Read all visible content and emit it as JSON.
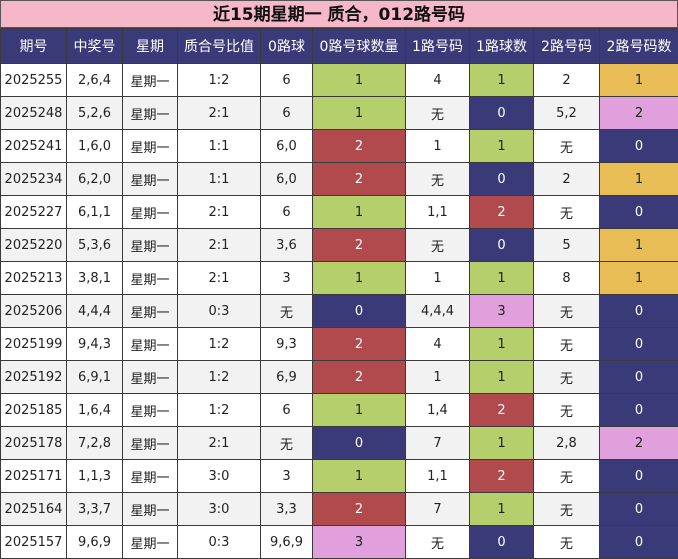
{
  "title": "近15期星期一 质合，012路号码",
  "colors": {
    "header_bg": "#3b3a78",
    "title_bg": "#f6b7c8",
    "green": "#b4cf6c",
    "red": "#b04a4d",
    "navy": "#3b3a78",
    "pink": "#dfa0dc",
    "yellow": "#e9bd56"
  },
  "headers": [
    "期号",
    "中奖号",
    "星期",
    "质合号比值",
    "0路球",
    "0路号球数量",
    "1路号码",
    "1路球数",
    "2路号码",
    "2路号码数"
  ],
  "rows": [
    {
      "period": "2025255",
      "numbers": "2,6,4",
      "weekday": "星期一",
      "ratio": "1:2",
      "road0": "6",
      "road0_count": "1",
      "road1": "4",
      "road1_count": "1",
      "road2": "2",
      "road2_count": "1"
    },
    {
      "period": "2025248",
      "numbers": "5,2,6",
      "weekday": "星期一",
      "ratio": "2:1",
      "road0": "6",
      "road0_count": "1",
      "road1": "无",
      "road1_count": "0",
      "road2": "5,2",
      "road2_count": "2"
    },
    {
      "period": "2025241",
      "numbers": "1,6,0",
      "weekday": "星期一",
      "ratio": "1:1",
      "road0": "6,0",
      "road0_count": "2",
      "road1": "1",
      "road1_count": "1",
      "road2": "无",
      "road2_count": "0"
    },
    {
      "period": "2025234",
      "numbers": "6,2,0",
      "weekday": "星期一",
      "ratio": "1:1",
      "road0": "6,0",
      "road0_count": "2",
      "road1": "无",
      "road1_count": "0",
      "road2": "2",
      "road2_count": "1"
    },
    {
      "period": "2025227",
      "numbers": "6,1,1",
      "weekday": "星期一",
      "ratio": "2:1",
      "road0": "6",
      "road0_count": "1",
      "road1": "1,1",
      "road1_count": "2",
      "road2": "无",
      "road2_count": "0"
    },
    {
      "period": "2025220",
      "numbers": "5,3,6",
      "weekday": "星期一",
      "ratio": "2:1",
      "road0": "3,6",
      "road0_count": "2",
      "road1": "无",
      "road1_count": "0",
      "road2": "5",
      "road2_count": "1"
    },
    {
      "period": "2025213",
      "numbers": "3,8,1",
      "weekday": "星期一",
      "ratio": "2:1",
      "road0": "3",
      "road0_count": "1",
      "road1": "1",
      "road1_count": "1",
      "road2": "8",
      "road2_count": "1"
    },
    {
      "period": "2025206",
      "numbers": "4,4,4",
      "weekday": "星期一",
      "ratio": "0:3",
      "road0": "无",
      "road0_count": "0",
      "road1": "4,4,4",
      "road1_count": "3",
      "road2": "无",
      "road2_count": "0"
    },
    {
      "period": "2025199",
      "numbers": "9,4,3",
      "weekday": "星期一",
      "ratio": "1:2",
      "road0": "9,3",
      "road0_count": "2",
      "road1": "4",
      "road1_count": "1",
      "road2": "无",
      "road2_count": "0"
    },
    {
      "period": "2025192",
      "numbers": "6,9,1",
      "weekday": "星期一",
      "ratio": "1:2",
      "road0": "6,9",
      "road0_count": "2",
      "road1": "1",
      "road1_count": "1",
      "road2": "无",
      "road2_count": "0"
    },
    {
      "period": "2025185",
      "numbers": "1,6,4",
      "weekday": "星期一",
      "ratio": "1:2",
      "road0": "6",
      "road0_count": "1",
      "road1": "1,4",
      "road1_count": "2",
      "road2": "无",
      "road2_count": "0"
    },
    {
      "period": "2025178",
      "numbers": "7,2,8",
      "weekday": "星期一",
      "ratio": "2:1",
      "road0": "无",
      "road0_count": "0",
      "road1": "7",
      "road1_count": "1",
      "road2": "2,8",
      "road2_count": "2"
    },
    {
      "period": "2025171",
      "numbers": "1,1,3",
      "weekday": "星期一",
      "ratio": "3:0",
      "road0": "3",
      "road0_count": "1",
      "road1": "1,1",
      "road1_count": "2",
      "road2": "无",
      "road2_count": "0"
    },
    {
      "period": "2025164",
      "numbers": "3,3,7",
      "weekday": "星期一",
      "ratio": "3:0",
      "road0": "3,3",
      "road0_count": "2",
      "road1": "7",
      "road1_count": "1",
      "road2": "无",
      "road2_count": "0"
    },
    {
      "period": "2025157",
      "numbers": "9,6,9",
      "weekday": "星期一",
      "ratio": "0:3",
      "road0": "9,6,9",
      "road0_count": "3",
      "road1": "无",
      "road1_count": "0",
      "road2": "无",
      "road2_count": "0"
    }
  ]
}
